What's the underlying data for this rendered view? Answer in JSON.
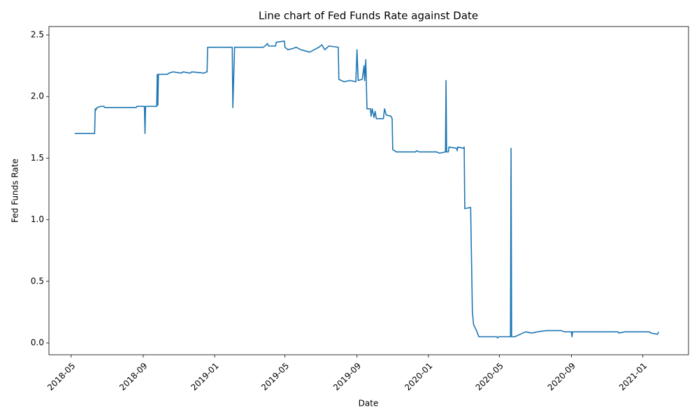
{
  "chart_data": {
    "type": "line",
    "title": "Line chart of Fed Funds Rate against Date",
    "x_label": "Date",
    "y_label": "Fed Funds Rate",
    "series": [
      {
        "name": "Fed Funds Rate",
        "color": "#1f77b4",
        "x": [
          "2018-05-07",
          "2018-06-10",
          "2018-06-11",
          "2018-06-12",
          "2018-06-13",
          "2018-06-14",
          "2018-06-20",
          "2018-06-26",
          "2018-06-27",
          "2018-08-20",
          "2018-08-21",
          "2018-09-03",
          "2018-09-04",
          "2018-09-05",
          "2018-09-24",
          "2018-09-25",
          "2018-09-26",
          "2018-09-27",
          "2018-10-12",
          "2018-10-15",
          "2018-10-22",
          "2018-11-05",
          "2018-11-08",
          "2018-11-20",
          "2018-11-23",
          "2018-12-14",
          "2018-12-18",
          "2018-12-19",
          "2018-12-20",
          "2019-01-31",
          "2019-02-01",
          "2019-02-04",
          "2019-03-25",
          "2019-03-28",
          "2019-04-01",
          "2019-04-03",
          "2019-04-15",
          "2019-04-16",
          "2019-04-30",
          "2019-05-01",
          "2019-05-06",
          "2019-05-15",
          "2019-05-20",
          "2019-05-28",
          "2019-06-05",
          "2019-06-12",
          "2019-06-20",
          "2019-06-28",
          "2019-07-03",
          "2019-07-08",
          "2019-07-15",
          "2019-07-31",
          "2019-08-01",
          "2019-08-05",
          "2019-08-10",
          "2019-08-20",
          "2019-08-30",
          "2019-09-01",
          "2019-09-03",
          "2019-09-10",
          "2019-09-13",
          "2019-09-14",
          "2019-09-16",
          "2019-09-18",
          "2019-09-24",
          "2019-09-25",
          "2019-09-27",
          "2019-09-30",
          "2019-10-02",
          "2019-10-04",
          "2019-10-16",
          "2019-10-18",
          "2019-10-21",
          "2019-10-29",
          "2019-10-31",
          "2019-11-01",
          "2019-11-04",
          "2019-11-07",
          "2019-12-10",
          "2019-12-12",
          "2019-12-16",
          "2020-01-15",
          "2020-01-20",
          "2020-01-30",
          "2020-01-31",
          "2020-02-01",
          "2020-02-04",
          "2020-02-05",
          "2020-02-18",
          "2020-02-19",
          "2020-02-20",
          "2020-03-01",
          "2020-03-02",
          "2020-03-03",
          "2020-03-13",
          "2020-03-16",
          "2020-03-18",
          "2020-03-23",
          "2020-03-27",
          "2020-04-27",
          "2020-04-28",
          "2020-04-30",
          "2020-05-20",
          "2020-05-21",
          "2020-05-22",
          "2020-05-27",
          "2020-06-01",
          "2020-06-10",
          "2020-06-15",
          "2020-06-25",
          "2020-07-05",
          "2020-07-20",
          "2020-08-15",
          "2020-08-20",
          "2020-09-01",
          "2020-09-02",
          "2020-09-03",
          "2020-11-20",
          "2020-11-21",
          "2020-12-01",
          "2021-01-12",
          "2021-01-15",
          "2021-01-26",
          "2021-01-28"
        ],
        "values": [
          1.7,
          1.7,
          1.9,
          1.89,
          1.9,
          1.91,
          1.92,
          1.92,
          1.91,
          1.91,
          1.92,
          1.92,
          1.7,
          1.92,
          1.92,
          2.18,
          1.93,
          2.18,
          2.18,
          2.19,
          2.2,
          2.19,
          2.2,
          2.19,
          2.2,
          2.19,
          2.2,
          2.2,
          2.4,
          2.4,
          1.91,
          2.4,
          2.4,
          2.41,
          2.43,
          2.41,
          2.41,
          2.44,
          2.45,
          2.4,
          2.38,
          2.39,
          2.4,
          2.38,
          2.37,
          2.36,
          2.38,
          2.4,
          2.42,
          2.38,
          2.41,
          2.4,
          2.14,
          2.13,
          2.12,
          2.13,
          2.12,
          2.38,
          2.13,
          2.14,
          2.25,
          2.13,
          2.3,
          1.9,
          1.9,
          1.84,
          1.9,
          1.83,
          1.88,
          1.82,
          1.82,
          1.9,
          1.85,
          1.84,
          1.82,
          1.57,
          1.56,
          1.55,
          1.55,
          1.56,
          1.55,
          1.55,
          1.54,
          1.55,
          2.13,
          1.55,
          1.55,
          1.59,
          1.58,
          1.56,
          1.59,
          1.58,
          1.59,
          1.09,
          1.1,
          0.25,
          0.15,
          0.1,
          0.05,
          0.05,
          0.04,
          0.05,
          0.05,
          1.58,
          0.05,
          0.05,
          0.06,
          0.08,
          0.09,
          0.08,
          0.09,
          0.1,
          0.1,
          0.09,
          0.09,
          0.05,
          0.09,
          0.09,
          0.08,
          0.09,
          0.09,
          0.08,
          0.07,
          0.09
        ]
      }
    ],
    "xlim": [
      "2018-03-24",
      "2021-03-20"
    ],
    "xticks": [
      "2018-05",
      "2018-09",
      "2019-01",
      "2019-05",
      "2019-09",
      "2020-01",
      "2020-05",
      "2020-09",
      "2021-01"
    ],
    "ylim": [
      -0.096,
      2.568
    ],
    "yticks": [
      {
        "value": 0,
        "label": "0.0"
      },
      0.5,
      {
        "value": 1,
        "label": "1.0"
      },
      1.5,
      {
        "value": 2,
        "label": "2.0"
      },
      2.5
    ],
    "grid": false
  }
}
